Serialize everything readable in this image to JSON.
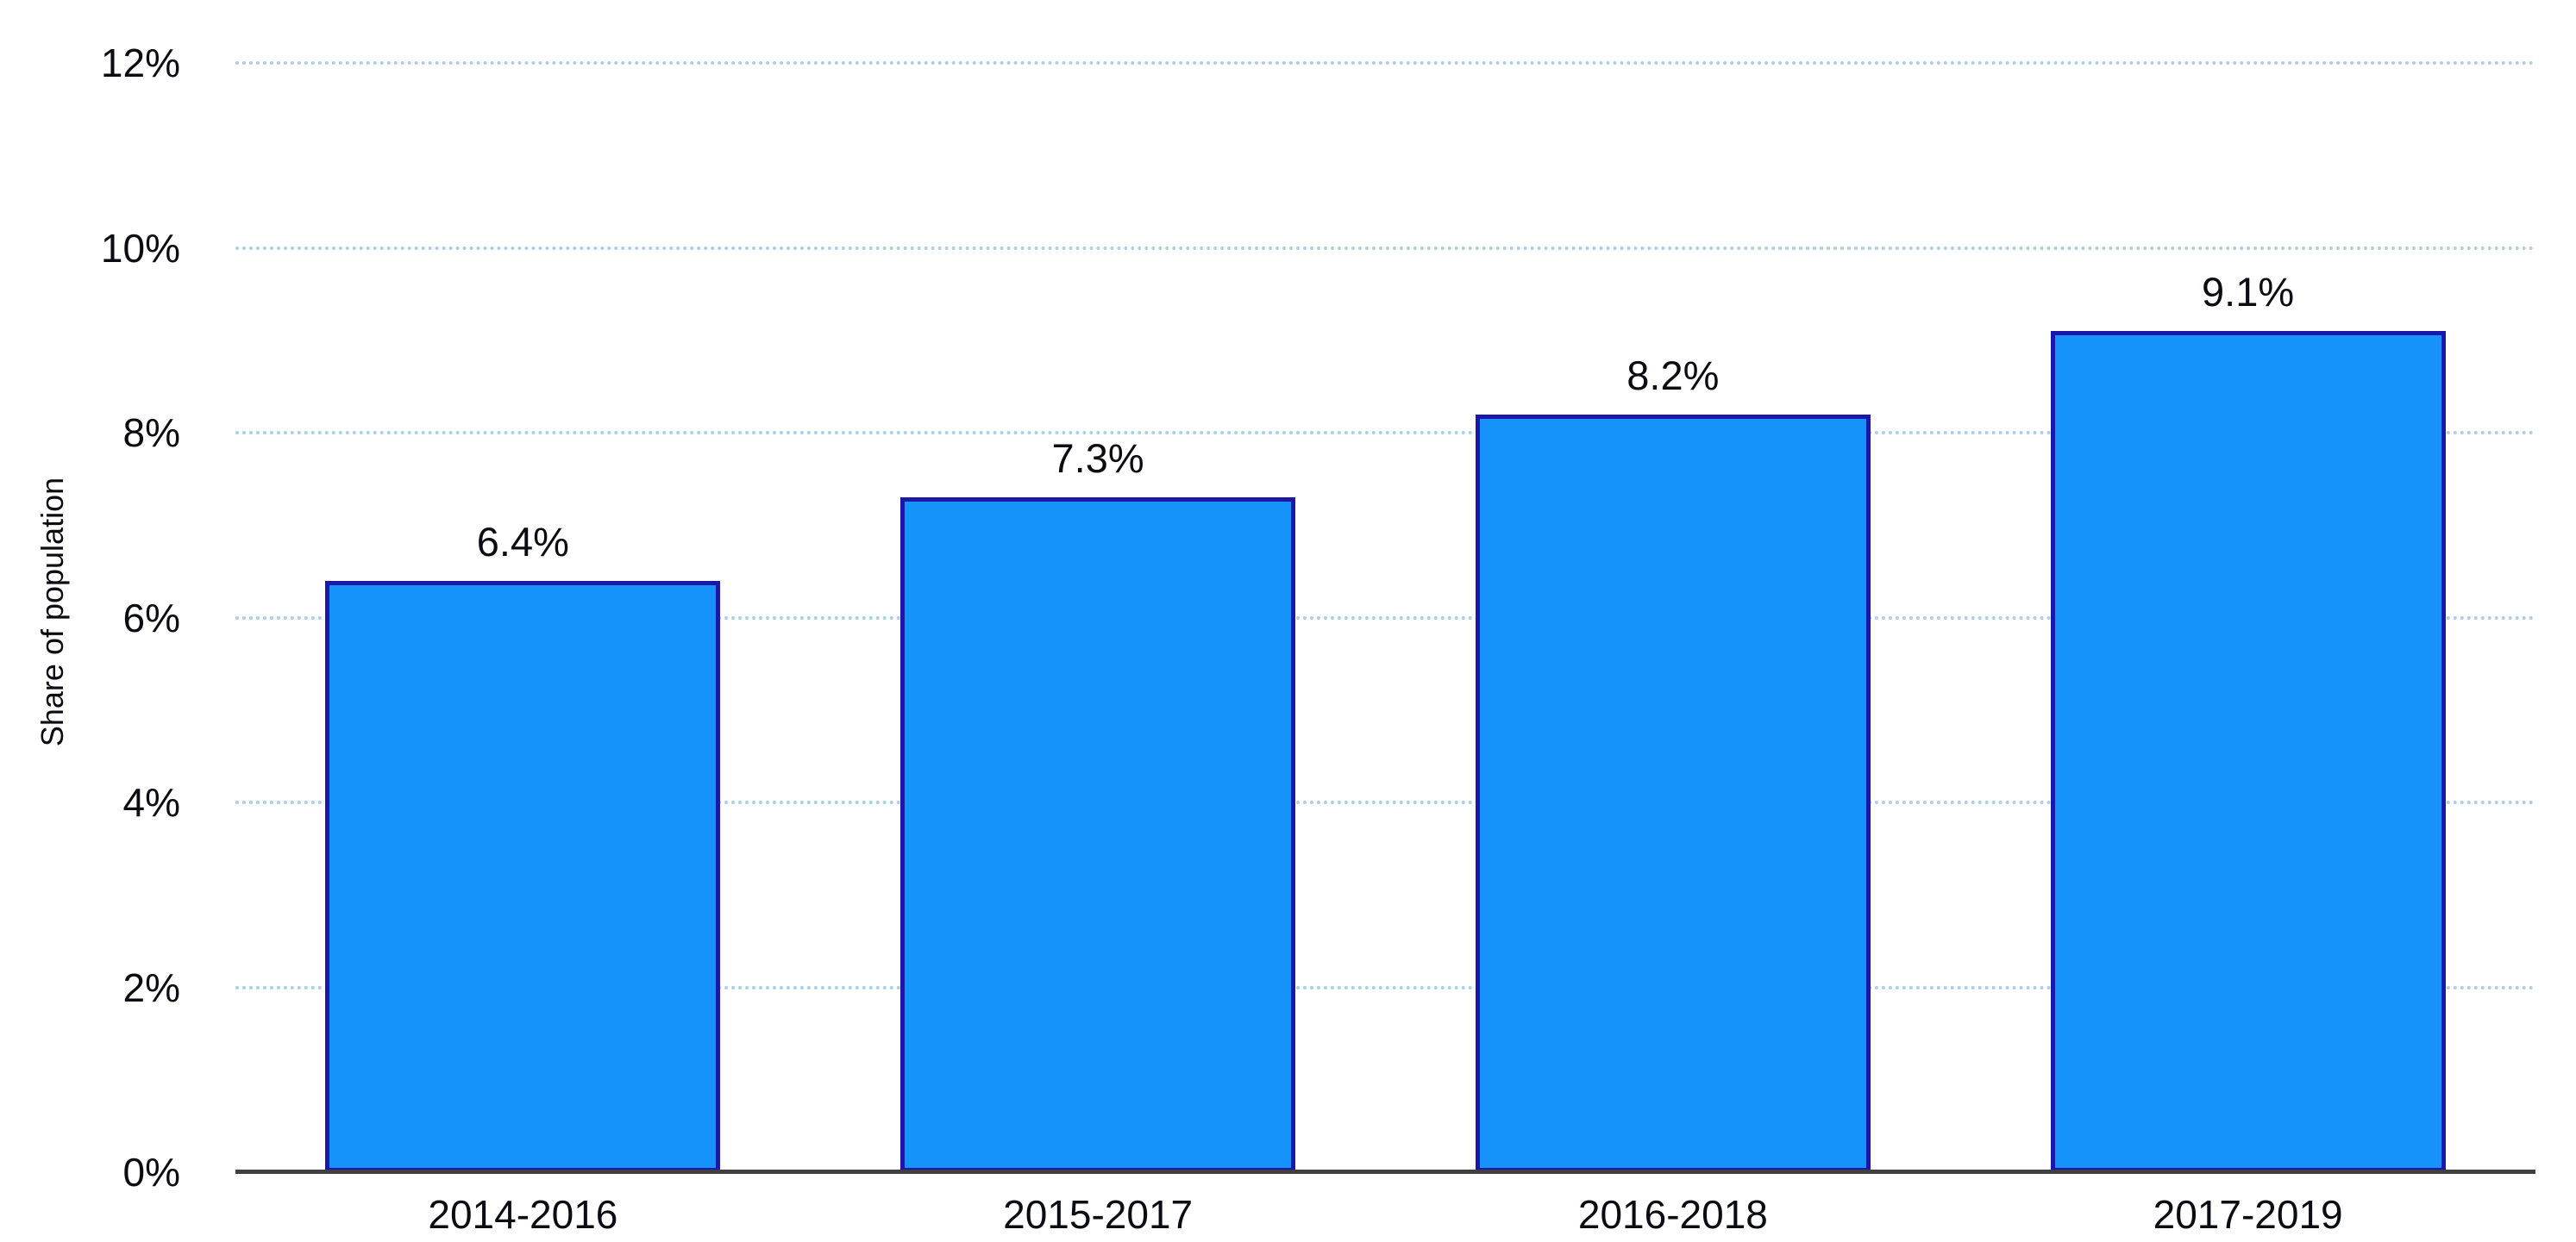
{
  "chart_data": {
    "type": "bar",
    "title": "",
    "xlabel": "",
    "ylabel": "Share of population",
    "categories": [
      "2014-2016",
      "2015-2017",
      "2016-2018",
      "2017-2019"
    ],
    "values": [
      6.4,
      7.3,
      8.2,
      9.1
    ],
    "data_labels": [
      "6.4%",
      "7.3%",
      "8.2%",
      "9.1%"
    ],
    "ylim": [
      0,
      12
    ],
    "ytick_step": 2,
    "ytick_values": [
      0,
      2,
      4,
      6,
      8,
      10,
      12
    ],
    "ytick_labels": [
      "0%",
      "2%",
      "4%",
      "6%",
      "8%",
      "10%",
      "12%"
    ],
    "grid": "horizontal dotted gridlines at each y tick, no vertical grid",
    "legend": "none",
    "colors": {
      "bar_fill": "#1593fa",
      "bar_border": "#1b18a9",
      "gridline": "#aecfe5",
      "axis_line": "#3f3f3f",
      "text": "#0b0b12",
      "background": "#ffffff"
    }
  }
}
